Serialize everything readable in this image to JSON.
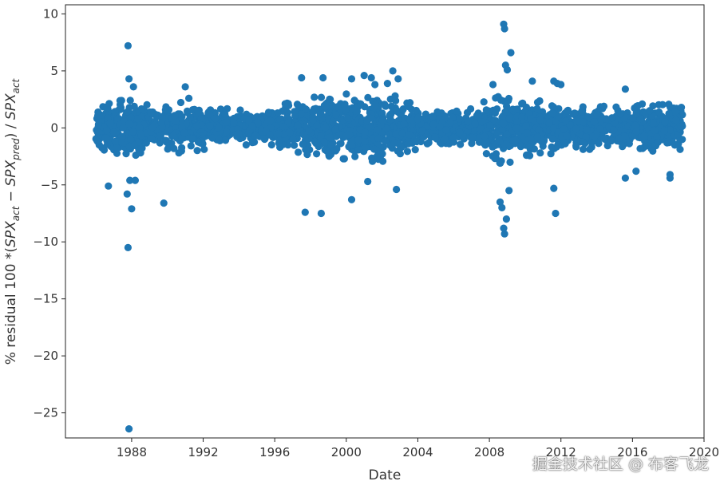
{
  "chart_data": {
    "type": "scatter",
    "xlabel": "Date",
    "ylabel": "% residual 100 *(SPX_act − SPX_pred) / SPX_act",
    "ylabel_parts": {
      "prefix": "% residual 100 *(",
      "a": "SPX",
      "a_sub": "act",
      "minus": " − ",
      "b": "SPX",
      "b_sub": "pred",
      "mid": ") / ",
      "c": "SPX",
      "c_sub": "act"
    },
    "xlim": [
      1984.3,
      2020.0
    ],
    "ylim": [
      -27.2,
      10.8
    ],
    "xticks": [
      1988,
      1992,
      1996,
      2000,
      2004,
      2008,
      2012,
      2016,
      2020
    ],
    "xtick_labels": [
      "1988",
      "1992",
      "1996",
      "2000",
      "2004",
      "2008",
      "2012",
      "2016",
      "2020"
    ],
    "yticks": [
      10,
      5,
      0,
      -5,
      -10,
      -15,
      -20,
      -25
    ],
    "ytick_labels": [
      "10",
      "5",
      "0",
      "−5",
      "−10",
      "−15",
      "−20",
      "−25"
    ],
    "grid": false,
    "marker_color": "#1f77b4",
    "series": [
      {
        "x_range": [
          1986.0,
          2018.8
        ],
        "band_envelope": [
          [
            1986.0,
            -1.9,
            1.9
          ],
          [
            1987.0,
            -2.0,
            2.0
          ],
          [
            1987.8,
            -2.8,
            2.3
          ],
          [
            1988.5,
            -2.0,
            2.0
          ],
          [
            1990.0,
            -2.0,
            2.0
          ],
          [
            1991.0,
            -1.9,
            2.1
          ],
          [
            1993.0,
            -1.4,
            1.5
          ],
          [
            1995.0,
            -1.1,
            1.3
          ],
          [
            1996.0,
            -1.5,
            1.6
          ],
          [
            1998.0,
            -2.3,
            2.4
          ],
          [
            2000.0,
            -2.6,
            2.7
          ],
          [
            2002.0,
            -2.7,
            3.0
          ],
          [
            2003.5,
            -2.0,
            2.0
          ],
          [
            2005.0,
            -1.1,
            1.1
          ],
          [
            2007.0,
            -1.2,
            1.4
          ],
          [
            2008.8,
            -3.0,
            3.0
          ],
          [
            2010.0,
            -2.2,
            2.4
          ],
          [
            2012.0,
            -2.0,
            2.0
          ],
          [
            2014.0,
            -1.5,
            1.6
          ],
          [
            2016.0,
            -1.7,
            1.9
          ],
          [
            2018.8,
            -1.9,
            1.9
          ]
        ],
        "outliers": [
          [
            1987.8,
            7.2
          ],
          [
            1987.85,
            4.3
          ],
          [
            1988.1,
            3.6
          ],
          [
            1987.75,
            -5.8
          ],
          [
            1987.9,
            -4.6
          ],
          [
            1988.2,
            -4.6
          ],
          [
            1988.0,
            -7.1
          ],
          [
            1986.7,
            -5.1
          ],
          [
            1987.8,
            -10.5
          ],
          [
            1987.85,
            -26.4
          ],
          [
            1989.8,
            -6.6
          ],
          [
            1991.0,
            3.6
          ],
          [
            1991.2,
            2.6
          ],
          [
            1997.5,
            4.4
          ],
          [
            1997.7,
            -7.4
          ],
          [
            1998.6,
            -7.5
          ],
          [
            1998.7,
            4.4
          ],
          [
            2000.3,
            -6.3
          ],
          [
            2000.3,
            4.3
          ],
          [
            2001.0,
            4.6
          ],
          [
            2001.4,
            4.4
          ],
          [
            2001.6,
            3.8
          ],
          [
            2002.3,
            3.9
          ],
          [
            2002.6,
            5.0
          ],
          [
            2002.9,
            4.3
          ],
          [
            2002.8,
            -5.4
          ],
          [
            2001.2,
            -4.7
          ],
          [
            2008.2,
            3.8
          ],
          [
            2008.8,
            9.1
          ],
          [
            2008.85,
            8.7
          ],
          [
            2008.9,
            5.5
          ],
          [
            2009.0,
            5.1
          ],
          [
            2009.2,
            6.6
          ],
          [
            2008.85,
            -9.3
          ],
          [
            2008.8,
            -8.8
          ],
          [
            2008.95,
            -8.0
          ],
          [
            2008.7,
            -7.0
          ],
          [
            2008.6,
            -6.5
          ],
          [
            2009.1,
            -5.5
          ],
          [
            2010.4,
            4.1
          ],
          [
            2011.6,
            4.1
          ],
          [
            2011.7,
            -7.5
          ],
          [
            2011.6,
            -5.3
          ],
          [
            2011.8,
            3.9
          ],
          [
            2015.6,
            3.4
          ],
          [
            2015.6,
            -4.4
          ],
          [
            2016.2,
            -3.8
          ],
          [
            2018.1,
            -4.1
          ],
          [
            2018.1,
            -4.4
          ],
          [
            2012.0,
            3.8
          ]
        ]
      }
    ]
  },
  "watermark": "掘金技术社区 @ 布客飞龙"
}
